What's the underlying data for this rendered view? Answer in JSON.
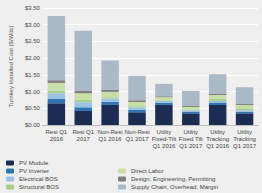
{
  "chart_data": {
    "type": "bar",
    "stacked": true,
    "categories": [
      "Resi Q1\n2016",
      "Resi Q1\n2017",
      "Non-Resi\nQ1 2016",
      "Non-Resi\nQ1 2017",
      "Utility\nFixed-Tilt\nQ1 2016",
      "Utility\nFixed Tilt\nQ1 2017",
      "Utility\nTracking\nQ1 2016",
      "Utility\nTracking\nQ1 2017"
    ],
    "series": [
      {
        "name": "PV Module",
        "color": "#1b2d52",
        "values": [
          0.65,
          0.42,
          0.6,
          0.38,
          0.6,
          0.35,
          0.6,
          0.35
        ]
      },
      {
        "name": "PV Inverter",
        "color": "#2e75b6",
        "values": [
          0.13,
          0.11,
          0.09,
          0.07,
          0.07,
          0.05,
          0.07,
          0.05
        ]
      },
      {
        "name": "Electrical BOS",
        "color": "#9cc3e5",
        "values": [
          0.17,
          0.15,
          0.1,
          0.08,
          0.05,
          0.04,
          0.05,
          0.04
        ]
      },
      {
        "name": "Structural BOS",
        "color": "#a8d08d",
        "values": [
          0.08,
          0.07,
          0.04,
          0.03,
          0.02,
          0.02,
          0.07,
          0.06
        ]
      },
      {
        "name": "Direct Labor",
        "color": "#c6e0a5",
        "values": [
          0.23,
          0.2,
          0.16,
          0.13,
          0.09,
          0.08,
          0.11,
          0.1
        ]
      },
      {
        "name": "Design, Engineering, Permitting",
        "color": "#7f7f7f",
        "values": [
          0.08,
          0.07,
          0.06,
          0.05,
          0.03,
          0.03,
          0.04,
          0.03
        ]
      },
      {
        "name": "Supply Chain, Overhead, Margin",
        "color": "#aab9c8",
        "values": [
          1.92,
          1.8,
          0.88,
          0.73,
          0.37,
          0.45,
          0.58,
          0.5
        ]
      }
    ],
    "ylabel": "Turnkey Installed Cost ($/Wdc)",
    "ylim": [
      0,
      3.5
    ],
    "yticks": [
      {
        "value": 0.0,
        "label": "$0.00"
      },
      {
        "value": 0.5,
        "label": "$0.50"
      },
      {
        "value": 1.0,
        "label": "$1.00"
      },
      {
        "value": 1.5,
        "label": "$1.50"
      },
      {
        "value": 2.0,
        "label": "$2.00"
      },
      {
        "value": 2.5,
        "label": "$2.50"
      },
      {
        "value": 3.0,
        "label": "$3.00"
      },
      {
        "value": 3.5,
        "label": "$3.50"
      }
    ],
    "grid": true,
    "legend": "bottom"
  }
}
